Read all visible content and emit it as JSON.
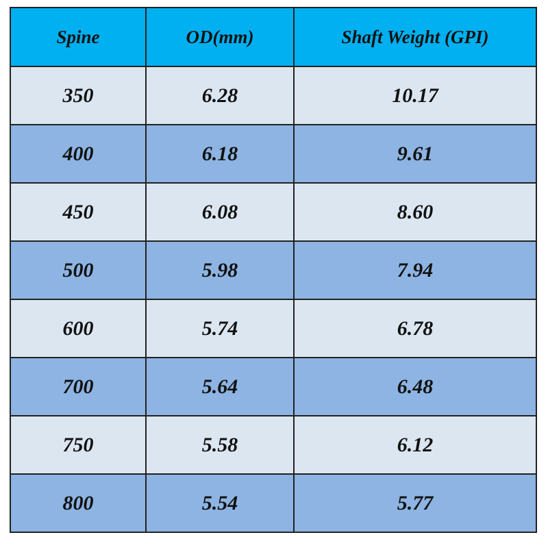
{
  "table": {
    "header": [
      "Spine",
      "OD(mm)",
      "Shaft Weight (GPI)"
    ],
    "rows": [
      [
        "350",
        "6.28",
        "10.17"
      ],
      [
        "400",
        "6.18",
        "9.61"
      ],
      [
        "450",
        "6.08",
        "8.60"
      ],
      [
        "500",
        "5.98",
        "7.94"
      ],
      [
        "600",
        "5.74",
        "6.78"
      ],
      [
        "700",
        "5.64",
        "6.48"
      ],
      [
        "750",
        "5.58",
        "6.12"
      ],
      [
        "800",
        "5.54",
        "5.77"
      ]
    ]
  }
}
